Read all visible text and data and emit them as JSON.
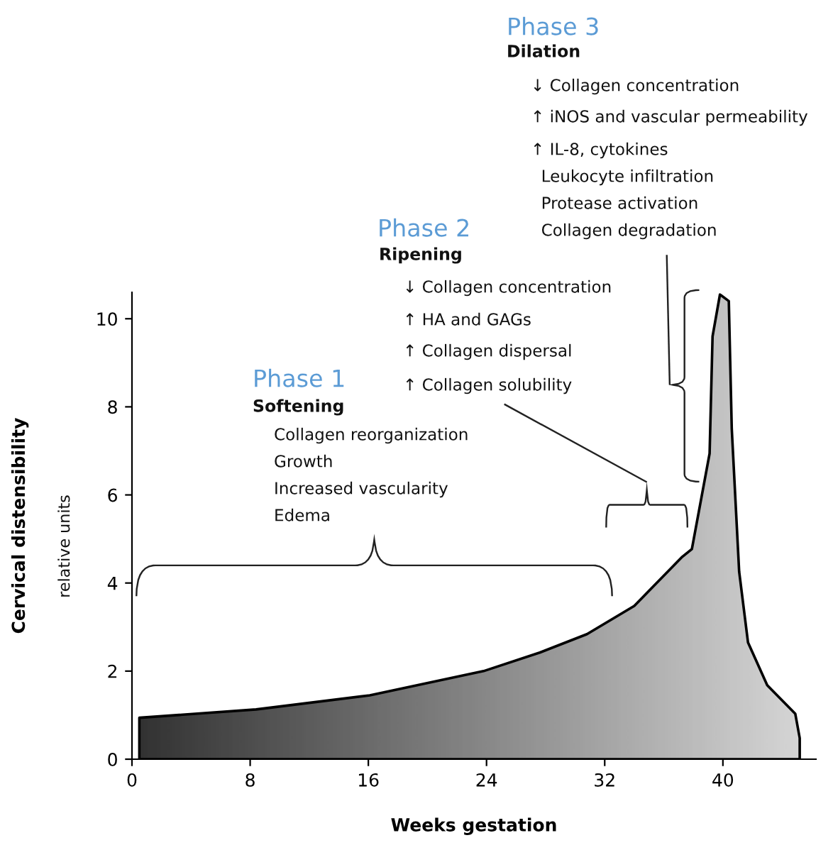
{
  "chart_data": {
    "type": "area",
    "xlabel": "Weeks gestation",
    "ylabel": "Cervical distensibility",
    "x": [
      0.5,
      8.4,
      16.1,
      23.8,
      27.6,
      30.8,
      34.0,
      37.2,
      37.9,
      39.1,
      39.3,
      39.8,
      40.4,
      40.6,
      41.1,
      41.7,
      43.0,
      44.9,
      45.2,
      45.2
    ],
    "series": [
      {
        "color": "#808080",
        "values": [
          0.94,
          1.13,
          1.45,
          2.0,
          2.42,
          2.84,
          3.48,
          4.58,
          4.77,
          6.94,
          9.6,
          10.55,
          10.4,
          7.5,
          4.26,
          2.65,
          1.68,
          1.03,
          0.48,
          0.0
        ]
      }
    ],
    "xlim": [
      0,
      46.3
    ],
    "ylim": [
      0,
      10.6
    ],
    "xticks": [
      0,
      8,
      16,
      24,
      32,
      40
    ],
    "yticks": [
      0,
      2,
      4,
      6,
      8,
      10
    ],
    "grid": false,
    "legend": false,
    "annotations": [
      "relative units",
      "Phase 1",
      "Softening",
      "Collagen reorganization",
      "Growth",
      "Increased vascularity",
      "Edema",
      "Phase 2",
      "Ripening",
      "↓ Collagen concentration",
      "↑ HA and GAGs",
      "↑ Collagen dispersal",
      "↑ Collagen solubility",
      "Phase 3",
      "Dilation",
      "↓ Collagen concentration",
      "↑ iNOS and vascular permeability",
      "↑ IL-8, cytokines",
      "  Leukocyte infiltration",
      "  Protease activation",
      "  Collagen degradation"
    ]
  }
}
